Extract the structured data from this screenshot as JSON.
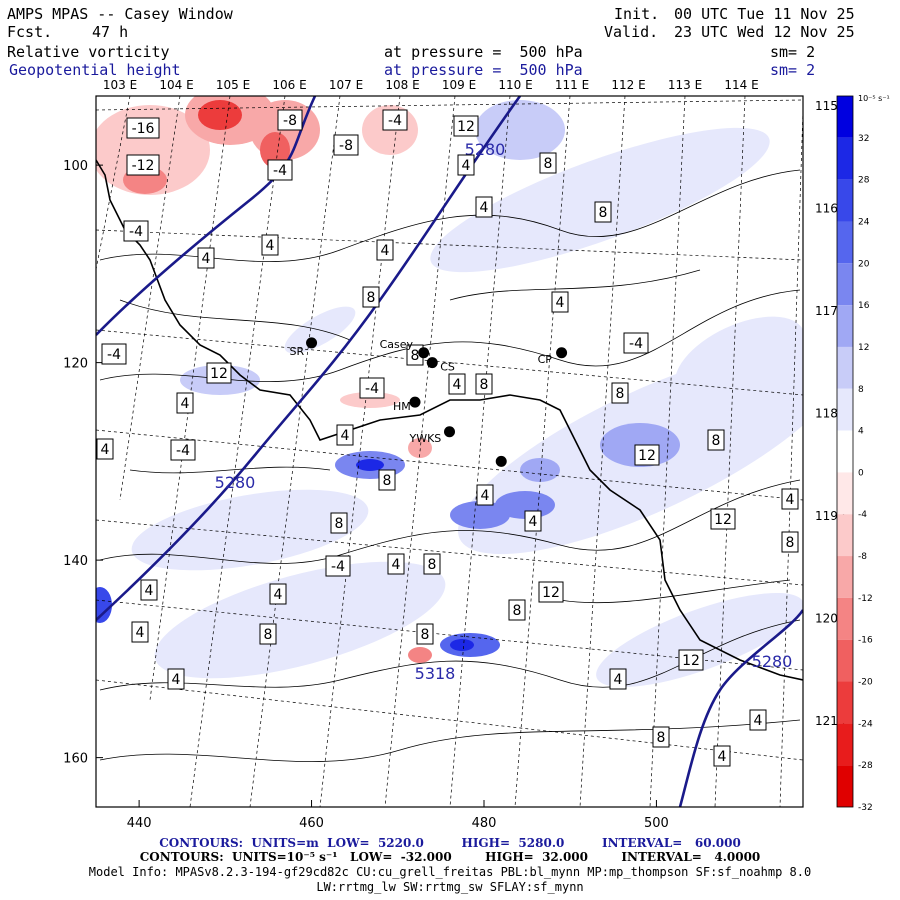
{
  "header": {
    "title": "AMPS MPAS -- Casey Window",
    "fcst_label": "Fcst.",
    "fcst_value": "47 h",
    "init_label": "Init.",
    "init_value": "00 UTC Tue 11 Nov 25",
    "valid_label": "Valid.",
    "valid_value": "23 UTC Wed 12 Nov 25",
    "field1": "Relative vorticity",
    "field2": "Geopotential height",
    "pressure1": "at pressure =  500 hPa",
    "pressure2": "at pressure =  500 hPa",
    "sm1": "sm= 2",
    "sm2": "sm= 2"
  },
  "map": {
    "lon_labels_top": [
      "103 E",
      "104 E",
      "105 E",
      "106 E",
      "107 E",
      "108 E",
      "109 E",
      "110 E",
      "111 E",
      "112 E",
      "113 E",
      "114 E"
    ],
    "lon_labels_right": [
      "115 E",
      "116 E",
      "117 E",
      "118 E",
      "119 E",
      "120 E",
      "121 E"
    ],
    "y_ticks": [
      "100",
      "120",
      "140",
      "160"
    ],
    "x_ticks": [
      "440",
      "460",
      "480",
      "500"
    ],
    "stations": [
      {
        "name": "SR",
        "x": 460,
        "y": 118
      },
      {
        "name": "Casey",
        "x": 473,
        "y": 119
      },
      {
        "name": "CS",
        "x": 474,
        "y": 120
      },
      {
        "name": "CP",
        "x": 489,
        "y": 119
      },
      {
        "name": "HM",
        "x": 472,
        "y": 124
      },
      {
        "name": "YWKS",
        "x": 476,
        "y": 127
      },
      {
        "name": "",
        "x": 482,
        "y": 130
      }
    ],
    "height_labels": [
      "5280",
      "5280",
      "5280",
      "5318"
    ],
    "vort_labels": [
      "-16",
      "-8",
      "-12",
      "-4",
      "-8",
      "-4",
      "-4",
      "12",
      "4",
      "8",
      "4",
      "4",
      "4",
      "4",
      "8",
      "8",
      "4",
      "-4",
      "8",
      "-4",
      "12",
      "8",
      "4",
      "-4",
      "4",
      "-4",
      "4",
      "4",
      "8",
      "12",
      "8",
      "8",
      "4",
      "4",
      "8",
      "12",
      "4",
      "8",
      "-4",
      "4",
      "8",
      "4",
      "8",
      "4",
      "12",
      "4",
      "8",
      "8",
      "12",
      "4",
      "4",
      "4",
      "8",
      "4"
    ]
  },
  "colorbar": {
    "unit": "10⁻⁵ s⁻¹",
    "labels": [
      "32",
      "28",
      "24",
      "20",
      "16",
      "12",
      "8",
      "4",
      "0",
      "-4",
      "-8",
      "-12",
      "-16",
      "-20",
      "-24",
      "-28",
      "-32"
    ],
    "colors": [
      "#0000e0",
      "#1c28e6",
      "#3848ea",
      "#5566ee",
      "#7a86f0",
      "#a0a8f4",
      "#c8ccf8",
      "#e6e8fc",
      "#ffffff",
      "#ffe8e8",
      "#fccaca",
      "#f8a8a8",
      "#f48484",
      "#f06060",
      "#ec3c3c",
      "#e81c1c",
      "#e00000"
    ]
  },
  "footer": {
    "line1": "CONTOURS:  UNITS=m  LOW=  5220.0         HIGH=  5280.0         INTERVAL=   60.000",
    "line2": "CONTOURS:  UNITS=10⁻⁵ s⁻¹   LOW=  -32.000        HIGH=  32.000        INTERVAL=   4.0000",
    "line3": "Model Info: MPASv8.2.3-194-gf29cd82c CU:cu_grell_freitas PBL:bl_mynn MP:mp_thompson SF:sf_noahmp 8.0",
    "line4": "LW:rrtmg_lw SW:rrtmg_sw SFLAY:sf_mynn"
  }
}
